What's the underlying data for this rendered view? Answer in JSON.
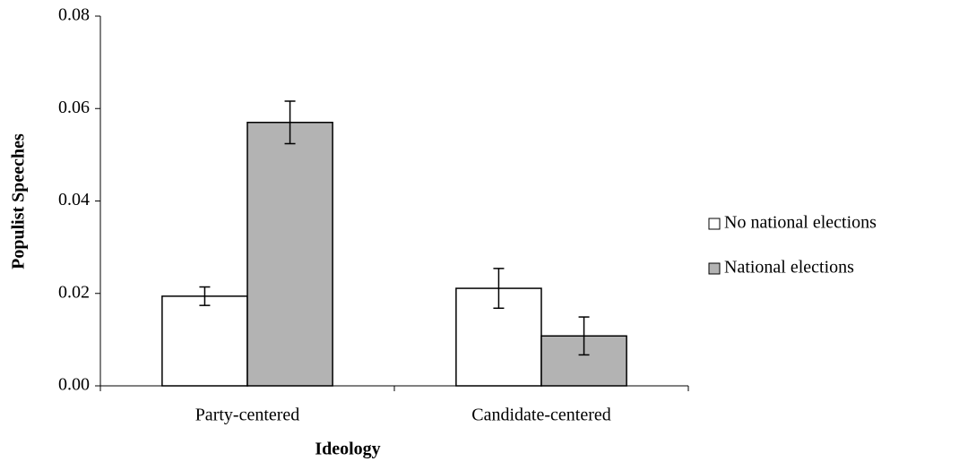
{
  "chart_data": {
    "type": "bar",
    "x_label": "Ideology",
    "y_label": "Populist Speeches",
    "categories": [
      "Party-centered",
      "Candidate-centered"
    ],
    "series": [
      {
        "name": "No national elections",
        "color": "#ffffff",
        "values": [
          0.0194,
          0.0211
        ],
        "errors": [
          0.002,
          0.0043
        ]
      },
      {
        "name": "National elections",
        "color": "#b3b3b3",
        "values": [
          0.057,
          0.0108
        ],
        "errors": [
          0.0046,
          0.0041
        ]
      }
    ],
    "ylim": [
      0,
      0.08
    ],
    "yticks": [
      {
        "value": 0,
        "label": "0.00"
      },
      {
        "value": 0.02,
        "label": "0.02"
      },
      {
        "value": 0.04,
        "label": "0.04"
      },
      {
        "value": 0.06,
        "label": "0.06"
      },
      {
        "value": 0.08,
        "label": "0.08"
      }
    ],
    "legend": "right"
  }
}
